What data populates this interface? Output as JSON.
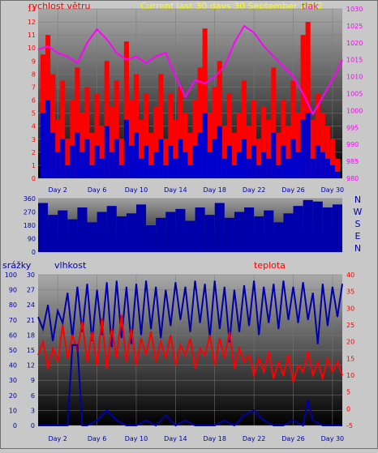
{
  "colors": {
    "background": "#c8c8c8",
    "wind_speed": "#ff0000",
    "wind_gust": "#0000cc",
    "pressure": "#ff00ff",
    "wind_dir": "#0000aa",
    "rain": "#0000aa",
    "humidity": "#0000aa",
    "temperature": "#ff0000",
    "compass_label": "#0000aa",
    "plot_top": "#9e9e9e",
    "plot_bottom": "#000000"
  },
  "chart_data": [
    {
      "type": "line",
      "panel": "wind-pressure",
      "title": "Current last 30 days 30 September 2022",
      "ylabel_left": "rychlost větru",
      "ylabel_right": "tlak",
      "xticks": [
        "Day 2",
        "Day 6",
        "Day 10",
        "Day 14",
        "Day 18",
        "Day 22",
        "Day 26",
        "Day 30"
      ],
      "xtick_days": [
        2,
        6,
        10,
        14,
        18,
        22,
        26,
        30
      ],
      "xlim": [
        0,
        31
      ],
      "ylim_left": [
        0,
        13
      ],
      "yticks_left": [
        0,
        1,
        2,
        3,
        4,
        5,
        6,
        7,
        8,
        9,
        10,
        11,
        12,
        13
      ],
      "ylim_right": [
        980,
        1030
      ],
      "yticks_right": [
        980,
        985,
        990,
        995,
        1000,
        1005,
        1010,
        1015,
        1020,
        1025,
        1030
      ],
      "series": [
        {
          "name": "rychlost větru",
          "style": "bars",
          "days": [
            0.5,
            1.0,
            1.5,
            2.0,
            2.5,
            3.0,
            3.5,
            4.0,
            4.5,
            5.0,
            5.5,
            6.0,
            6.5,
            7.0,
            7.5,
            8.0,
            8.5,
            9.0,
            9.5,
            10.0,
            10.5,
            11.0,
            11.5,
            12.0,
            12.5,
            13.0,
            13.5,
            14.0,
            14.5,
            15.0,
            15.5,
            16.0,
            16.5,
            17.0,
            17.5,
            18.0,
            18.5,
            19.0,
            19.5,
            20.0,
            20.5,
            21.0,
            21.5,
            22.0,
            22.5,
            23.0,
            23.5,
            24.0,
            24.5,
            25.0,
            25.5,
            26.0,
            26.5,
            27.0,
            27.5,
            28.0,
            28.5,
            29.0,
            29.5,
            30.0,
            30.5
          ],
          "values": [
            9.5,
            11.0,
            8.0,
            4.5,
            7.5,
            3.0,
            6.0,
            8.5,
            5.0,
            7.0,
            3.5,
            6.5,
            4.0,
            9.0,
            5.5,
            7.5,
            3.0,
            10.5,
            6.0,
            8.0,
            4.5,
            6.5,
            3.5,
            5.5,
            8.0,
            3.0,
            6.5,
            4.5,
            7.0,
            5.0,
            3.5,
            6.0,
            8.5,
            11.5,
            5.0,
            7.0,
            9.0,
            4.0,
            6.5,
            3.5,
            5.0,
            7.5,
            4.0,
            6.0,
            3.0,
            5.5,
            4.5,
            8.5,
            3.5,
            6.0,
            4.0,
            7.5,
            5.0,
            11.0,
            12.0,
            4.5,
            6.5,
            5.0,
            4.0,
            3.0,
            1.5
          ]
        },
        {
          "name": "gust",
          "style": "bars",
          "days": [
            0.5,
            1.0,
            1.5,
            2.0,
            2.5,
            3.0,
            3.5,
            4.0,
            4.5,
            5.0,
            5.5,
            6.0,
            6.5,
            7.0,
            7.5,
            8.0,
            8.5,
            9.0,
            9.5,
            10.0,
            10.5,
            11.0,
            11.5,
            12.0,
            12.5,
            13.0,
            13.5,
            14.0,
            14.5,
            15.0,
            15.5,
            16.0,
            16.5,
            17.0,
            17.5,
            18.0,
            18.5,
            19.0,
            19.5,
            20.0,
            20.5,
            21.0,
            21.5,
            22.0,
            22.5,
            23.0,
            23.5,
            24.0,
            24.5,
            25.0,
            25.5,
            26.0,
            26.5,
            27.0,
            27.5,
            28.0,
            28.5,
            29.0,
            29.5,
            30.0,
            30.5
          ],
          "values": [
            5.0,
            6.0,
            3.5,
            2.0,
            3.0,
            1.0,
            2.5,
            3.5,
            2.0,
            3.0,
            1.0,
            2.5,
            1.5,
            4.0,
            2.0,
            3.0,
            1.0,
            4.5,
            2.5,
            3.5,
            1.5,
            2.5,
            1.0,
            2.0,
            3.0,
            1.0,
            2.5,
            1.5,
            3.0,
            2.0,
            1.0,
            2.5,
            3.5,
            5.0,
            2.0,
            3.0,
            4.0,
            1.5,
            2.5,
            1.0,
            2.0,
            3.0,
            1.5,
            2.5,
            1.0,
            2.0,
            1.5,
            3.5,
            1.0,
            2.5,
            1.5,
            3.0,
            2.0,
            4.5,
            5.0,
            1.5,
            2.5,
            2.0,
            1.5,
            1.0,
            0.5
          ]
        },
        {
          "name": "tlak",
          "style": "line",
          "axis": "right",
          "days": [
            0,
            1,
            2,
            3,
            4,
            5,
            6,
            7,
            8,
            9,
            10,
            11,
            12,
            13,
            14,
            15,
            16,
            17,
            18,
            19,
            20,
            21,
            22,
            23,
            24,
            25,
            26,
            27,
            28,
            29,
            30,
            31
          ],
          "values": [
            1018,
            1019,
            1017,
            1016,
            1014,
            1020,
            1024,
            1021,
            1017,
            1015,
            1016,
            1014,
            1016,
            1017,
            1010,
            1004,
            1009,
            1008,
            1010,
            1013,
            1020,
            1025,
            1023,
            1019,
            1016,
            1013,
            1010,
            1005,
            999,
            1004,
            1009,
            1015
          ]
        }
      ]
    },
    {
      "type": "line",
      "panel": "wind-direction",
      "yticks_left": [
        0,
        90,
        180,
        270,
        360
      ],
      "ylim": [
        0,
        360
      ],
      "compass_labels": [
        "N",
        "W",
        "S",
        "E",
        "N"
      ],
      "series": [
        {
          "name": "direction",
          "style": "bars",
          "days": [
            0.5,
            1.5,
            2.5,
            3.5,
            4.5,
            5.5,
            6.5,
            7.5,
            8.5,
            9.5,
            10.5,
            11.5,
            12.5,
            13.5,
            14.5,
            15.5,
            16.5,
            17.5,
            18.5,
            19.5,
            20.5,
            21.5,
            22.5,
            23.5,
            24.5,
            25.5,
            26.5,
            27.5,
            28.5,
            29.5,
            30.5
          ],
          "values": [
            330,
            250,
            280,
            220,
            300,
            200,
            270,
            310,
            240,
            260,
            320,
            180,
            230,
            270,
            290,
            210,
            300,
            250,
            330,
            230,
            270,
            300,
            240,
            280,
            200,
            260,
            310,
            350,
            340,
            300,
            320
          ]
        }
      ]
    },
    {
      "type": "line",
      "panel": "rain-humidity-temperature",
      "label_left_1": "srážky",
      "label_left_2": "vlhkost",
      "label_right": "teplota",
      "xticks": [
        "Day 2",
        "Day 6",
        "Day 10",
        "Day 14",
        "Day 18",
        "Day 22",
        "Day 26",
        "Day 30"
      ],
      "xtick_days": [
        2,
        6,
        10,
        14,
        18,
        22,
        26,
        30
      ],
      "xlim": [
        0,
        31
      ],
      "yticks_rain": [
        0,
        10,
        20,
        30,
        40,
        50,
        60,
        70,
        80,
        90,
        100
      ],
      "ylim_rain": [
        0,
        100
      ],
      "yticks_humidity": [
        0,
        3,
        6,
        9,
        12,
        15,
        18,
        21,
        24,
        27,
        30
      ],
      "ylim_humidity": [
        0,
        30
      ],
      "yticks_temperature": [
        -5,
        0,
        5,
        10,
        15,
        20,
        25,
        30,
        35,
        40
      ],
      "ylim_temperature": [
        -5,
        40
      ],
      "series": [
        {
          "name": "vlhkost",
          "style": "line",
          "axis": "rain",
          "days": [
            0,
            0.5,
            1,
            1.5,
            2,
            2.5,
            3,
            3.5,
            4,
            4.5,
            5,
            5.5,
            6,
            6.5,
            7,
            7.5,
            8,
            8.5,
            9,
            9.5,
            10,
            10.5,
            11,
            11.5,
            12,
            12.5,
            13,
            13.5,
            14,
            14.5,
            15,
            15.5,
            16,
            16.5,
            17,
            17.5,
            18,
            18.5,
            19,
            19.5,
            20,
            20.5,
            21,
            21.5,
            22,
            22.5,
            23,
            23.5,
            24,
            24.5,
            25,
            25.5,
            26,
            26.5,
            27,
            27.5,
            28,
            28.5,
            29,
            29.5,
            30,
            30.5,
            31
          ],
          "values": [
            72,
            64,
            80,
            56,
            76,
            68,
            88,
            58,
            92,
            62,
            94,
            56,
            90,
            60,
            95,
            52,
            96,
            58,
            92,
            54,
            94,
            60,
            96,
            64,
            92,
            58,
            90,
            66,
            95,
            70,
            92,
            62,
            96,
            68,
            94,
            58,
            96,
            64,
            92,
            55,
            90,
            62,
            93,
            66,
            96,
            60,
            92,
            68,
            94,
            64,
            96,
            70,
            92,
            68,
            95,
            70,
            88,
            54,
            94,
            66,
            92,
            72,
            94
          ]
        },
        {
          "name": "teplota",
          "style": "line",
          "axis": "temperature",
          "days": [
            0,
            0.5,
            1,
            1.5,
            2,
            2.5,
            3,
            3.5,
            4,
            4.5,
            5,
            5.5,
            6,
            6.5,
            7,
            7.5,
            8,
            8.5,
            9,
            9.5,
            10,
            10.5,
            11,
            11.5,
            12,
            12.5,
            13,
            13.5,
            14,
            14.5,
            15,
            15.5,
            16,
            16.5,
            17,
            17.5,
            18,
            18.5,
            19,
            19.5,
            20,
            20.5,
            21,
            21.5,
            22,
            22.5,
            23,
            23.5,
            24,
            24.5,
            25,
            25.5,
            26,
            26.5,
            27,
            27.5,
            28,
            28.5,
            29,
            29.5,
            30,
            30.5,
            31
          ],
          "values": [
            16,
            20,
            12,
            18,
            14,
            25,
            15,
            22,
            17,
            26,
            14,
            23,
            13,
            27,
            12,
            24,
            15,
            28,
            14,
            24,
            13,
            21,
            16,
            23,
            14,
            20,
            15,
            22,
            13,
            19,
            16,
            21,
            12,
            18,
            16,
            22,
            13,
            21,
            15,
            23,
            12,
            18,
            14,
            16,
            10,
            15,
            11,
            17,
            9,
            14,
            10,
            16,
            8,
            13,
            11,
            17,
            10,
            14,
            9,
            15,
            11,
            14,
            10
          ]
        },
        {
          "name": "srážky",
          "style": "line",
          "axis": "humidity",
          "days": [
            0,
            2,
            3,
            3.5,
            4,
            4.5,
            5,
            6,
            7,
            8,
            9,
            10,
            11,
            12,
            13,
            14,
            15,
            16,
            17,
            18,
            19,
            20,
            21,
            22,
            23,
            24,
            25,
            26,
            27,
            27.5,
            28,
            29,
            30,
            31
          ],
          "values": [
            0,
            0,
            0,
            16,
            16,
            0,
            0,
            1,
            3,
            1,
            0,
            0,
            1,
            0,
            2,
            0,
            1,
            0,
            0,
            0,
            1,
            0,
            2,
            3,
            1,
            0,
            0,
            1,
            0,
            5,
            1,
            0,
            0,
            0
          ]
        }
      ]
    }
  ]
}
